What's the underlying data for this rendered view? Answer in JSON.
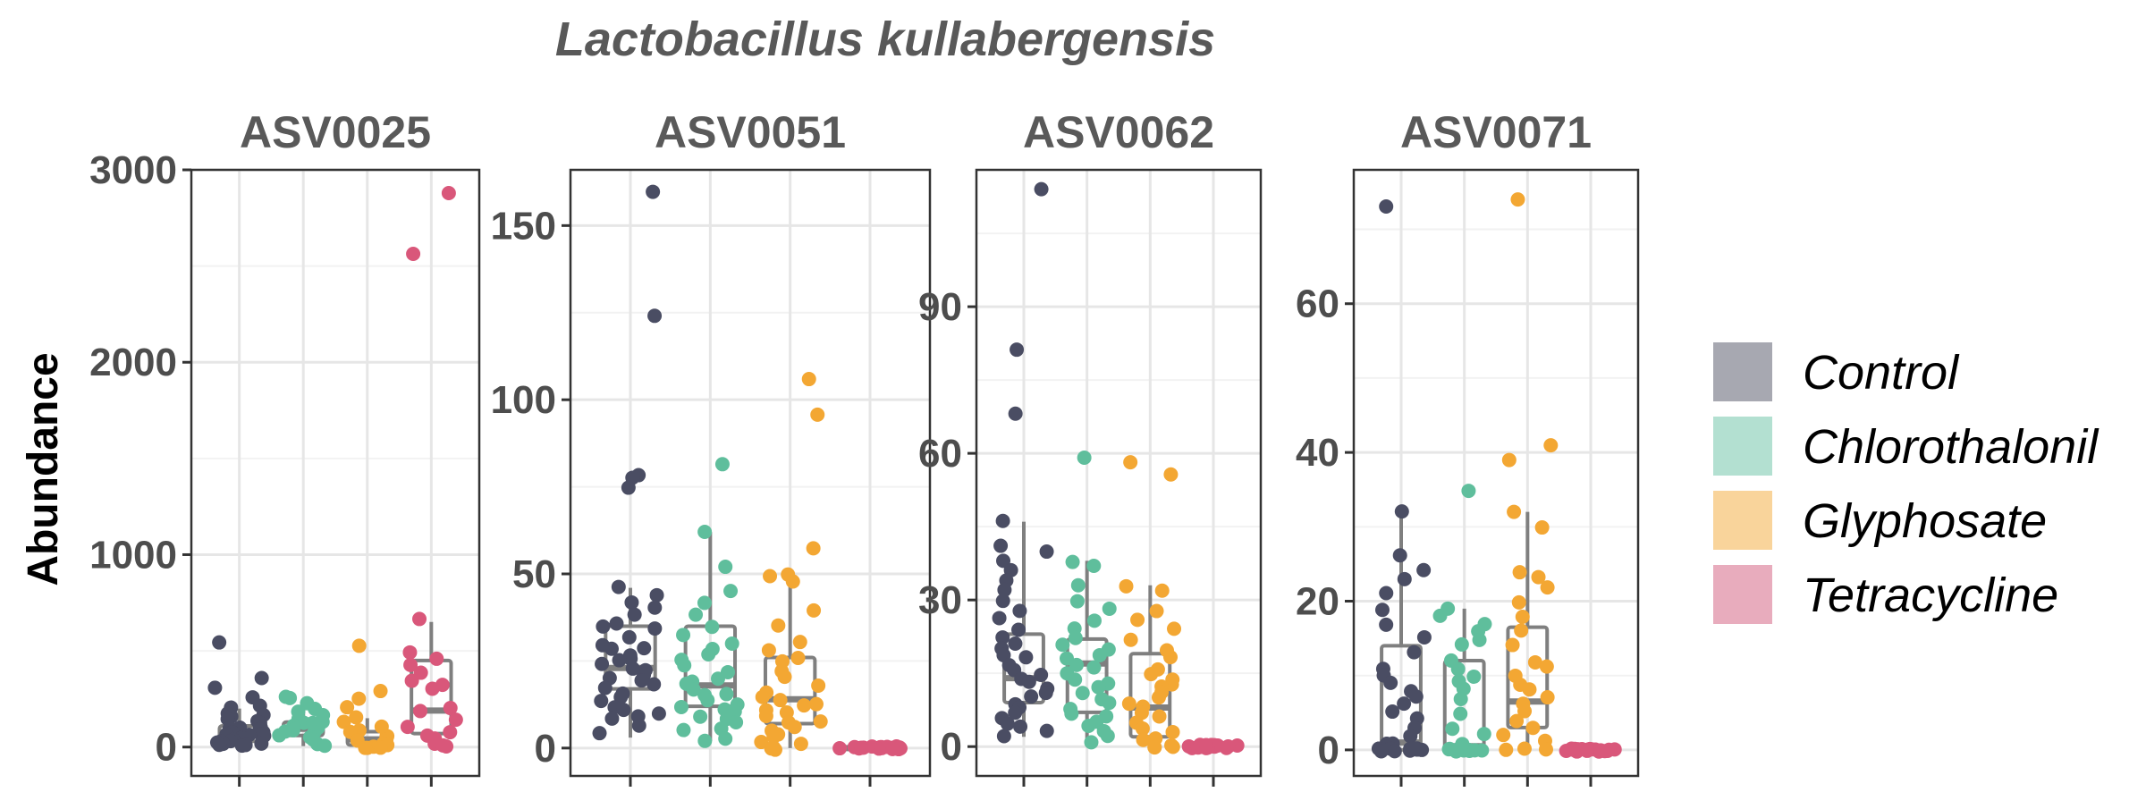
{
  "colors": {
    "Control": "#4a4d63",
    "Chlorothalonil": "#5fbe9c",
    "Glyphosate": "#f3a733",
    "Tetracycline": "#d9577a",
    "box": "#7f7f7f",
    "legend_Control": "#a7a8b1",
    "legend_Chlorothalonil": "#b3e0d1",
    "legend_Glyphosate": "#f9d49b",
    "legend_Tetracycline": "#e8acbd"
  },
  "chart_data": {
    "type": "boxplot",
    "title": "Lactobacillus kullabergensis",
    "ylabel": "Abundance",
    "xlabel": "",
    "groups": [
      "Control",
      "Chlorothalonil",
      "Glyphosate",
      "Tetracycline"
    ],
    "legend": {
      "position": "right",
      "entries": [
        "Control",
        "Chlorothalonil",
        "Glyphosate",
        "Tetracycline"
      ]
    },
    "panels": [
      {
        "label": "ASV0025",
        "ylim": [
          -150,
          3000
        ],
        "yticks": [
          0,
          1000,
          2000,
          3000
        ],
        "boxes": [
          {
            "group": "Control",
            "q1": 30,
            "median": 70,
            "q3": 110,
            "lo": 0,
            "hi": 200
          },
          {
            "group": "Chlorothalonil",
            "q1": 60,
            "median": 95,
            "q3": 130,
            "lo": 5,
            "hi": 250
          },
          {
            "group": "Glyphosate",
            "q1": 10,
            "median": 40,
            "q3": 80,
            "lo": 0,
            "hi": 150
          },
          {
            "group": "Tetracycline",
            "q1": 70,
            "median": 190,
            "q3": 450,
            "lo": 0,
            "hi": 650
          }
        ],
        "points": [
          {
            "group": "Control",
            "values": [
              550,
              350,
              300,
              260,
              220,
              200,
              180,
              160,
              150,
              140,
              130,
              120,
              110,
              100,
              95,
              90,
              85,
              80,
              75,
              70,
              65,
              60,
              55,
              50,
              45,
              40,
              35,
              30,
              25,
              20,
              15,
              10,
              5,
              0
            ]
          },
          {
            "group": "Chlorothalonil",
            "values": [
              260,
              250,
              220,
              200,
              180,
              160,
              150,
              140,
              130,
              120,
              110,
              100,
              95,
              90,
              80,
              70,
              60,
              50,
              40,
              30,
              20,
              10
            ]
          },
          {
            "group": "Glyphosate",
            "values": [
              520,
              300,
              250,
              200,
              160,
              130,
              110,
              90,
              70,
              60,
              50,
              40,
              30,
              20,
              15,
              10,
              5,
              0,
              0,
              0
            ]
          },
          {
            "group": "Tetracycline",
            "values": [
              2870,
              2560,
              670,
              500,
              460,
              420,
              380,
              340,
              320,
              300,
              200,
              180,
              150,
              110,
              80,
              60,
              40,
              20,
              0,
              0
            ]
          }
        ]
      },
      {
        "label": "ASV0051",
        "ylim": [
          -8,
          166
        ],
        "yticks": [
          0,
          50,
          100,
          150
        ],
        "boxes": [
          {
            "group": "Control",
            "q1": 17,
            "median": 23,
            "q3": 35,
            "lo": 3,
            "hi": 46
          },
          {
            "group": "Chlorothalonil",
            "q1": 12,
            "median": 18,
            "q3": 35,
            "lo": 2,
            "hi": 62
          },
          {
            "group": "Glyphosate",
            "q1": 7,
            "median": 14,
            "q3": 26,
            "lo": 0,
            "hi": 48
          },
          {
            "group": "Tetracycline",
            "q1": 0,
            "median": 0,
            "q3": 0,
            "lo": 0,
            "hi": 0
          }
        ],
        "points": [
          {
            "group": "Control",
            "values": [
              160,
              124,
              78,
              78,
              75,
              46,
              44,
              42,
              40,
              38,
              36,
              35,
              34,
              32,
              30,
              29,
              28,
              27,
              26,
              25,
              24,
              23,
              22,
              21,
              20,
              19,
              18,
              17,
              16,
              15,
              14,
              12,
              11,
              10,
              9,
              8,
              6,
              4
            ]
          },
          {
            "group": "Chlorothalonil",
            "values": [
              81,
              62,
              52,
              45,
              42,
              38,
              35,
              32,
              30,
              28,
              27,
              25,
              24,
              22,
              20,
              19,
              18,
              17,
              16,
              15,
              14,
              13,
              12,
              11,
              10,
              9,
              8,
              7,
              6,
              5,
              3,
              2
            ]
          },
          {
            "group": "Glyphosate",
            "values": [
              106,
              96,
              57,
              50,
              49,
              48,
              40,
              35,
              30,
              28,
              26,
              25,
              22,
              20,
              18,
              16,
              15,
              14,
              13,
              12,
              11,
              10,
              9,
              8,
              7,
              6,
              5,
              4,
              3,
              2,
              1,
              0,
              0,
              0
            ]
          },
          {
            "group": "Tetracycline",
            "values": [
              0,
              0,
              0,
              0,
              0,
              0,
              0,
              0,
              0,
              0,
              0,
              0,
              0,
              0,
              0,
              0,
              0,
              0,
              0,
              0
            ]
          }
        ]
      },
      {
        "label": "ASV0062",
        "ylim": [
          -6,
          118
        ],
        "yticks": [
          0,
          30,
          60,
          90
        ],
        "boxes": [
          {
            "group": "Control",
            "q1": 9,
            "median": 14,
            "q3": 23,
            "lo": 2,
            "hi": 46
          },
          {
            "group": "Chlorothalonil",
            "q1": 7,
            "median": 17,
            "q3": 22,
            "lo": 1,
            "hi": 38
          },
          {
            "group": "Glyphosate",
            "q1": 2,
            "median": 8,
            "q3": 19,
            "lo": 0,
            "hi": 33
          },
          {
            "group": "Tetracycline",
            "q1": 0,
            "median": 0,
            "q3": 0,
            "lo": 0,
            "hi": 0
          }
        ],
        "points": [
          {
            "group": "Control",
            "values": [
              114,
              81,
              68,
              46,
              41,
              40,
              38,
              36,
              34,
              32,
              30,
              28,
              26,
              24,
              22,
              21,
              20,
              19,
              18,
              17,
              16,
              15,
              14,
              13,
              12,
              11,
              10,
              9,
              8,
              7,
              6,
              5,
              4,
              3,
              2
            ]
          },
          {
            "group": "Chlorothalonil",
            "values": [
              59,
              38,
              37,
              33,
              30,
              28,
              26,
              24,
              22,
              21,
              20,
              19,
              18,
              17,
              16,
              15,
              14,
              13,
              12,
              11,
              10,
              9,
              8,
              7,
              6,
              5,
              4,
              3,
              2,
              1
            ]
          },
          {
            "group": "Glyphosate",
            "values": [
              58,
              56,
              33,
              32,
              28,
              26,
              24,
              22,
              20,
              18,
              16,
              15,
              14,
              13,
              12,
              11,
              10,
              9,
              8,
              7,
              6,
              5,
              4,
              3,
              2,
              1,
              0,
              0,
              0,
              0
            ]
          },
          {
            "group": "Tetracycline",
            "values": [
              0,
              0,
              0,
              0,
              0,
              0,
              0,
              0,
              0,
              0,
              0,
              0,
              0,
              0,
              0,
              0,
              0,
              0,
              0,
              0
            ]
          }
        ]
      },
      {
        "label": "ASV0071",
        "ylim": [
          -3.5,
          78
        ],
        "yticks": [
          0,
          20,
          40,
          60
        ],
        "boxes": [
          {
            "group": "Control",
            "q1": 0,
            "median": 1,
            "q3": 14,
            "lo": 0,
            "hi": 32
          },
          {
            "group": "Chlorothalonil",
            "q1": 0,
            "median": 0.5,
            "q3": 12,
            "lo": 0,
            "hi": 19
          },
          {
            "group": "Glyphosate",
            "q1": 3,
            "median": 6.5,
            "q3": 16.5,
            "lo": 0,
            "hi": 32
          },
          {
            "group": "Tetracycline",
            "q1": 0,
            "median": 0,
            "q3": 0,
            "lo": 0,
            "hi": 0
          }
        ],
        "points": [
          {
            "group": "Control",
            "values": [
              73,
              32,
              26,
              24,
              23,
              21,
              19,
              17,
              15,
              13,
              11,
              10,
              9,
              8,
              7,
              6,
              5,
              4,
              3,
              2,
              1,
              1,
              0,
              0,
              0,
              0,
              0,
              0,
              0,
              0,
              0,
              0,
              0,
              0
            ]
          },
          {
            "group": "Chlorothalonil",
            "values": [
              35,
              19,
              18,
              17,
              16,
              15,
              14,
              12,
              11,
              10,
              9,
              8,
              7,
              5,
              3,
              2,
              1,
              0,
              0,
              0,
              0,
              0,
              0,
              0,
              0,
              0
            ]
          },
          {
            "group": "Glyphosate",
            "values": [
              74,
              41,
              39,
              32,
              30,
              24,
              23,
              22,
              20,
              18,
              16,
              14,
              12,
              11,
              10,
              9,
              8,
              7,
              6,
              5,
              4,
              3,
              2,
              1,
              0,
              0,
              0
            ]
          },
          {
            "group": "Tetracycline",
            "values": [
              0,
              0,
              0,
              0,
              0,
              0,
              0,
              0,
              0,
              0,
              0,
              0,
              0,
              0,
              0,
              0,
              0,
              0,
              0,
              0
            ]
          }
        ]
      }
    ]
  }
}
